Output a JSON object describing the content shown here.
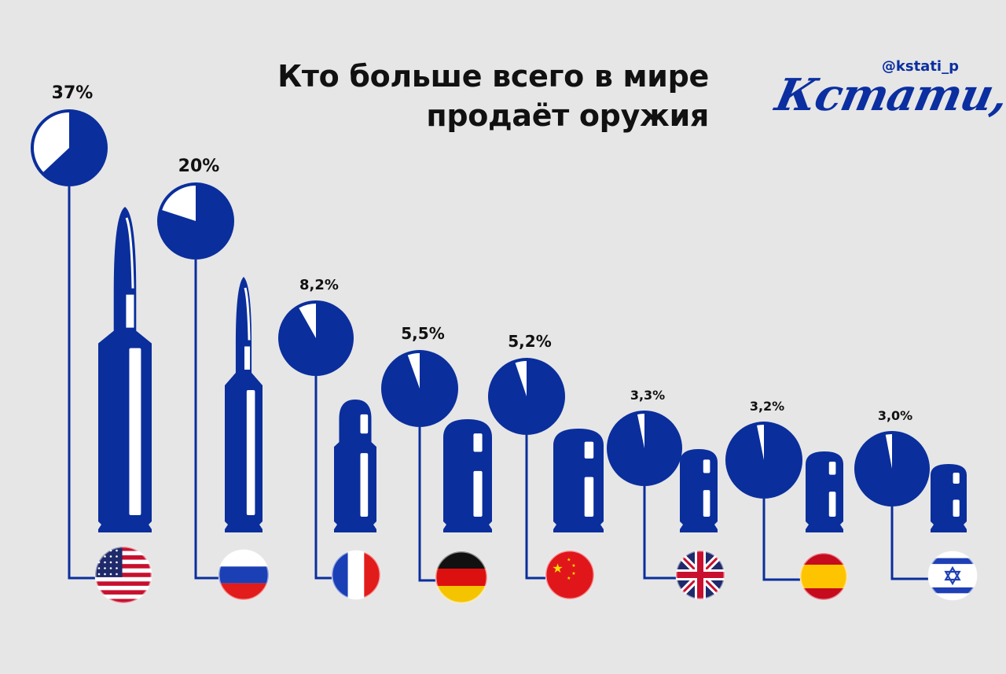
{
  "title_line1": "Кто больше всего в мире",
  "title_line2": "продаёт оружия",
  "handle": "@kstati_p",
  "logo": "Кстати,",
  "colors": {
    "blue": "#0a2e9c",
    "background": "#e6e6e6"
  },
  "chart_data": {
    "type": "bar",
    "title": "Кто больше всего в мире продаёт оружия",
    "categories": [
      "USA",
      "Russia",
      "France",
      "Germany",
      "China",
      "United Kingdom",
      "Spain",
      "Israel"
    ],
    "flag_icons": [
      "usa-flag-icon",
      "russia-flag-icon",
      "france-flag-icon",
      "germany-flag-icon",
      "china-flag-icon",
      "uk-flag-icon",
      "spain-flag-icon",
      "israel-flag-icon"
    ],
    "values": [
      37,
      20,
      8.2,
      5.5,
      5.2,
      3.3,
      3.2,
      3.0
    ],
    "labels": [
      "37%",
      "20%",
      "8,2%",
      "5,5%",
      "5,2%",
      "3,3%",
      "3,2%",
      "3,0%"
    ],
    "unit": "%"
  }
}
